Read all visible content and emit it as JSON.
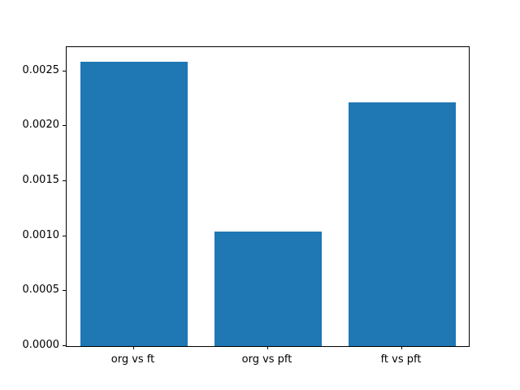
{
  "chart_data": {
    "type": "bar",
    "title": "",
    "xlabel": "",
    "ylabel": "",
    "categories": [
      "org vs ft",
      "org vs pft",
      "ft vs pft"
    ],
    "values": [
      0.00259,
      0.00104,
      0.00222
    ],
    "y_ticks": [
      0.0,
      0.0005,
      0.001,
      0.0015,
      0.002,
      0.0025
    ],
    "y_tick_labels": [
      "0.0000",
      "0.0005",
      "0.0010",
      "0.0015",
      "0.0020",
      "0.0025"
    ],
    "ylim": [
      0,
      0.0027195
    ],
    "bar_color": "#1f77b4",
    "bar_width_fraction": 0.8,
    "grid": false,
    "legend": null,
    "background_color": "#ffffff",
    "axis_color": "#000000"
  }
}
